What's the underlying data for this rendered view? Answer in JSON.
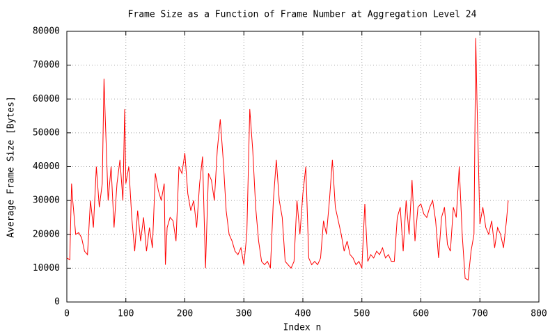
{
  "chart_data": {
    "type": "line",
    "title": "Frame Size as a Function of Frame Number at Aggregation Level 24",
    "x_label": "Index n",
    "y_label": "Average Frame Size [Bytes]",
    "x": [
      0,
      5,
      8,
      10,
      15,
      20,
      25,
      30,
      35,
      40,
      45,
      50,
      55,
      60,
      63,
      65,
      70,
      75,
      80,
      85,
      90,
      95,
      98,
      100,
      105,
      110,
      115,
      120,
      125,
      130,
      135,
      140,
      145,
      150,
      155,
      160,
      165,
      167,
      170,
      175,
      180,
      185,
      190,
      195,
      200,
      205,
      210,
      215,
      220,
      225,
      230,
      235,
      240,
      245,
      250,
      255,
      260,
      265,
      270,
      275,
      280,
      285,
      290,
      295,
      300,
      305,
      310,
      315,
      320,
      325,
      330,
      335,
      340,
      345,
      350,
      355,
      360,
      365,
      370,
      375,
      380,
      385,
      390,
      395,
      400,
      405,
      410,
      415,
      420,
      425,
      430,
      435,
      440,
      445,
      450,
      455,
      460,
      465,
      470,
      475,
      480,
      485,
      490,
      495,
      500,
      505,
      510,
      515,
      520,
      525,
      530,
      535,
      540,
      545,
      550,
      555,
      560,
      565,
      570,
      575,
      580,
      585,
      590,
      595,
      600,
      605,
      610,
      615,
      620,
      625,
      630,
      635,
      640,
      645,
      650,
      655,
      660,
      665,
      670,
      675,
      680,
      685,
      690,
      693,
      695,
      700,
      705,
      710,
      715,
      720,
      725,
      730,
      735,
      740,
      745,
      748
    ],
    "series": [
      {
        "color": "#ff0000",
        "values": [
          13000,
          12500,
          35000,
          30000,
          20000,
          20500,
          19000,
          15000,
          14000,
          30000,
          22000,
          40000,
          28000,
          35000,
          66000,
          55000,
          30000,
          40000,
          22000,
          35000,
          42000,
          30000,
          57000,
          35000,
          40000,
          25000,
          15000,
          27000,
          18000,
          25000,
          15000,
          22000,
          16000,
          38000,
          33000,
          30000,
          35000,
          11000,
          22000,
          25000,
          24000,
          18000,
          40000,
          38000,
          44000,
          32000,
          27000,
          30000,
          22000,
          35000,
          43000,
          10000,
          38000,
          36000,
          30000,
          45000,
          54000,
          42000,
          27000,
          20000,
          18000,
          15000,
          14000,
          16000,
          11000,
          20000,
          57000,
          45000,
          28000,
          18000,
          12000,
          11000,
          12000,
          10000,
          30000,
          42000,
          30000,
          25000,
          12000,
          11000,
          10000,
          12000,
          30000,
          20000,
          32000,
          40000,
          13000,
          11000,
          12000,
          11000,
          13000,
          24000,
          20000,
          30000,
          42000,
          28000,
          24000,
          20000,
          15000,
          18000,
          14000,
          13000,
          11000,
          12000,
          10000,
          29000,
          12000,
          14000,
          13000,
          15000,
          14000,
          16000,
          13000,
          14000,
          12000,
          12000,
          25000,
          28000,
          15000,
          30000,
          20000,
          36000,
          18000,
          28000,
          29000,
          26000,
          25000,
          28000,
          30000,
          24000,
          13000,
          25000,
          28000,
          17000,
          15000,
          28000,
          25000,
          40000,
          20000,
          7000,
          6500,
          15000,
          20000,
          78000,
          60000,
          23000,
          28000,
          22000,
          20000,
          24000,
          16000,
          22000,
          20000,
          16000,
          24000,
          30000
        ]
      }
    ],
    "xlim": [
      0,
      800
    ],
    "ylim": [
      0,
      80000
    ],
    "xticks": [
      0,
      100,
      200,
      300,
      400,
      500,
      600,
      700,
      800
    ],
    "yticks": [
      0,
      10000,
      20000,
      30000,
      40000,
      50000,
      60000,
      70000,
      80000
    ],
    "grid": true
  }
}
